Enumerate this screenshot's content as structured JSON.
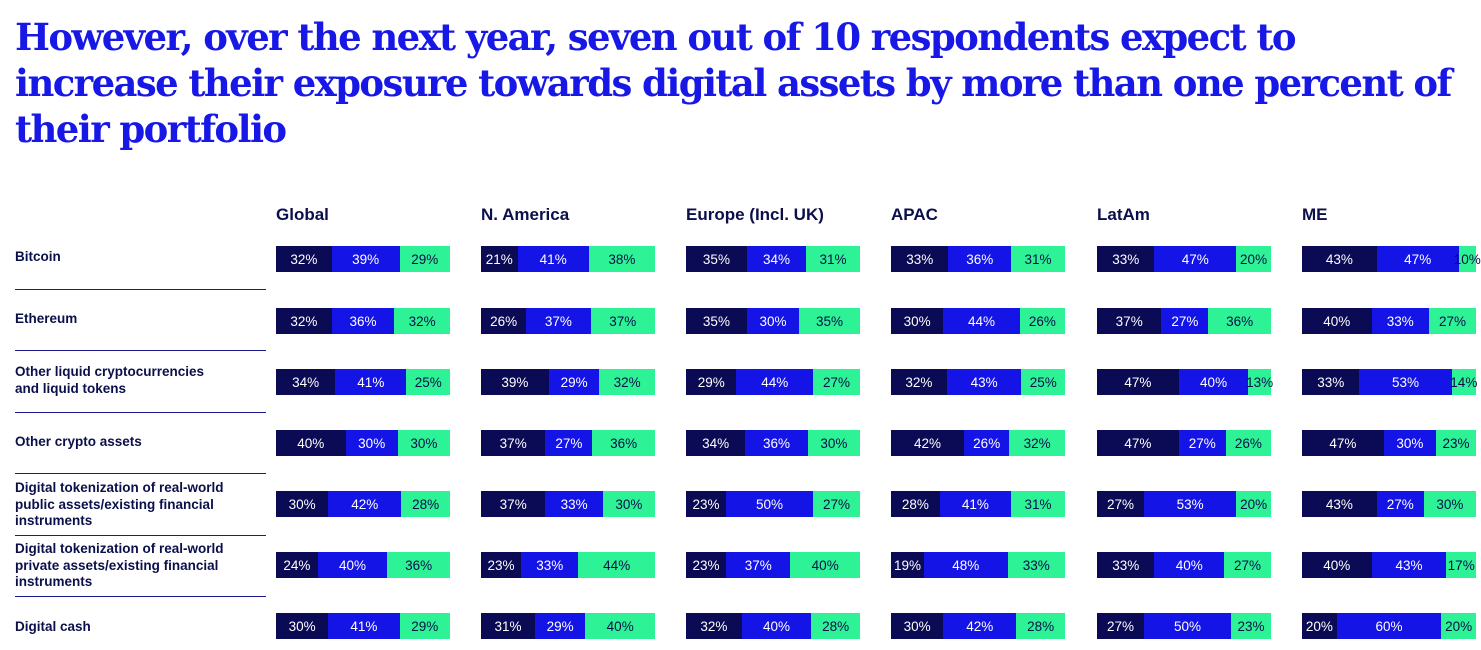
{
  "title": "However, over the next year, seven out of 10 respondents expect to increase their exposure towards digital assets by more than one percent of their portfolio",
  "colors": {
    "title": "#1717e6",
    "series1": "#0a0a55",
    "series2": "#1414e6",
    "series3": "#2ef296",
    "text": "#0b0f4a"
  },
  "chart_data": {
    "type": "bar",
    "orientation": "horizontal",
    "stacked": true,
    "normalized_to": 100,
    "unit": "%",
    "regions": [
      "Global",
      "N. America",
      "Europe (Incl. UK)",
      "APAC",
      "LatAm",
      "ME"
    ],
    "categories": [
      "Bitcoin",
      "Ethereum",
      "Other liquid cryptocurrencies and liquid tokens",
      "Other crypto assets",
      "Digital tokenization of real-world public assets/existing financial instruments",
      "Digital tokenization of real-world private assets/existing financial instruments",
      "Digital cash"
    ],
    "category_lines": [
      [
        "Bitcoin"
      ],
      [
        "Ethereum"
      ],
      [
        "Other liquid cryptocurrencies",
        "and liquid tokens"
      ],
      [
        "Other crypto assets"
      ],
      [
        "Digital tokenization of real-world",
        "public assets/existing financial",
        "instruments"
      ],
      [
        "Digital tokenization of real-world",
        "private assets/existing financial",
        "instruments"
      ],
      [
        "Digital cash"
      ]
    ],
    "series_colors": [
      "#0a0a55",
      "#1414e6",
      "#2ef296"
    ],
    "values": [
      [
        [
          32,
          39,
          29
        ],
        [
          21,
          41,
          38
        ],
        [
          35,
          34,
          31
        ],
        [
          33,
          36,
          31
        ],
        [
          33,
          47,
          20
        ],
        [
          43,
          47,
          10
        ]
      ],
      [
        [
          32,
          36,
          32
        ],
        [
          26,
          37,
          37
        ],
        [
          35,
          30,
          35
        ],
        [
          30,
          44,
          26
        ],
        [
          37,
          27,
          36
        ],
        [
          40,
          33,
          27
        ]
      ],
      [
        [
          34,
          41,
          25
        ],
        [
          39,
          29,
          32
        ],
        [
          29,
          44,
          27
        ],
        [
          32,
          43,
          25
        ],
        [
          47,
          40,
          13
        ],
        [
          33,
          53,
          14
        ]
      ],
      [
        [
          40,
          30,
          30
        ],
        [
          37,
          27,
          36
        ],
        [
          34,
          36,
          30
        ],
        [
          42,
          26,
          32
        ],
        [
          47,
          27,
          26
        ],
        [
          47,
          30,
          23
        ]
      ],
      [
        [
          30,
          42,
          28
        ],
        [
          37,
          33,
          30
        ],
        [
          23,
          50,
          27
        ],
        [
          28,
          41,
          31
        ],
        [
          27,
          53,
          20
        ],
        [
          43,
          27,
          30
        ]
      ],
      [
        [
          24,
          40,
          36
        ],
        [
          23,
          33,
          44
        ],
        [
          23,
          37,
          40
        ],
        [
          19,
          48,
          33
        ],
        [
          33,
          40,
          27
        ],
        [
          40,
          43,
          17
        ]
      ],
      [
        [
          30,
          41,
          29
        ],
        [
          31,
          29,
          40
        ],
        [
          32,
          40,
          28
        ],
        [
          30,
          42,
          28
        ],
        [
          27,
          50,
          23
        ],
        [
          20,
          60,
          20
        ]
      ]
    ]
  }
}
